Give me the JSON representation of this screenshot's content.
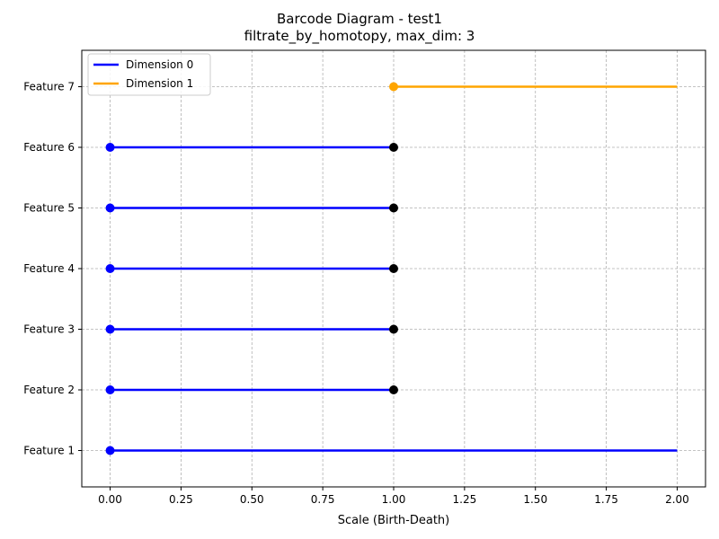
{
  "chart_data": {
    "type": "barcode",
    "title": "Barcode Diagram - test1",
    "subtitle": "filtrate_by_homotopy, max_dim: 3",
    "xlabel": "Scale (Birth-Death)",
    "ylabel": "",
    "xlim": [
      -0.1,
      2.1
    ],
    "x_ticks": [
      "0.00",
      "0.25",
      "0.50",
      "0.75",
      "1.00",
      "1.25",
      "1.50",
      "1.75",
      "2.00"
    ],
    "x_tick_values": [
      0,
      0.25,
      0.5,
      0.75,
      1.0,
      1.25,
      1.5,
      1.75,
      2.0
    ],
    "categories": [
      "Feature 1",
      "Feature 2",
      "Feature 3",
      "Feature 4",
      "Feature 5",
      "Feature 6",
      "Feature 7"
    ],
    "grid": true,
    "legend_position": "top-left",
    "series": [
      {
        "name": "Dimension 0",
        "color": "#0000ff"
      },
      {
        "name": "Dimension 1",
        "color": "#ffa500"
      }
    ],
    "bars": [
      {
        "feature": "Feature 1",
        "dimension": "Dimension 0",
        "birth": 0.0,
        "death": 2.0,
        "death_marker": false
      },
      {
        "feature": "Feature 2",
        "dimension": "Dimension 0",
        "birth": 0.0,
        "death": 1.0,
        "death_marker": true
      },
      {
        "feature": "Feature 3",
        "dimension": "Dimension 0",
        "birth": 0.0,
        "death": 1.0,
        "death_marker": true
      },
      {
        "feature": "Feature 4",
        "dimension": "Dimension 0",
        "birth": 0.0,
        "death": 1.0,
        "death_marker": true
      },
      {
        "feature": "Feature 5",
        "dimension": "Dimension 0",
        "birth": 0.0,
        "death": 1.0,
        "death_marker": true
      },
      {
        "feature": "Feature 6",
        "dimension": "Dimension 0",
        "birth": 0.0,
        "death": 1.0,
        "death_marker": true
      },
      {
        "feature": "Feature 7",
        "dimension": "Dimension 1",
        "birth": 1.0,
        "death": 2.0,
        "death_marker": false
      }
    ],
    "death_marker_color": "#000000",
    "grid_color": "#b0b0b0"
  }
}
